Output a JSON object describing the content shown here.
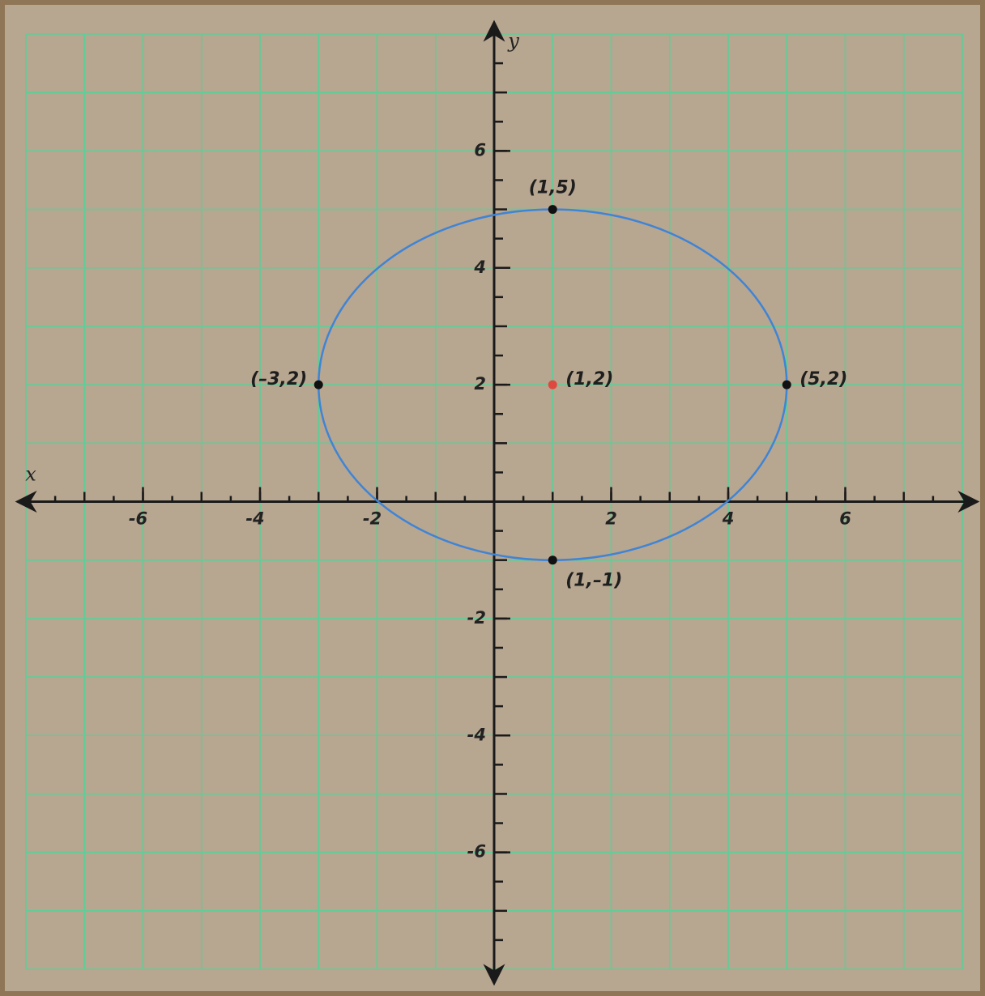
{
  "chart_data": {
    "type": "ellipse",
    "x_label": "x",
    "y_label": "y",
    "xlim": [
      -8,
      8
    ],
    "ylim": [
      -8,
      8
    ],
    "xticks": [
      -6,
      -4,
      -2,
      2,
      4,
      6
    ],
    "yticks": [
      -6,
      -4,
      -2,
      2,
      4,
      6
    ],
    "xgrid": [
      -8,
      -7,
      -6,
      -5,
      -4,
      -3,
      -2,
      -1,
      0,
      1,
      2,
      3,
      4,
      5,
      6,
      7,
      8
    ],
    "ygrid": [
      -8,
      -7,
      -6,
      -5,
      -4,
      -3,
      -2,
      -1,
      0,
      1,
      2,
      3,
      4,
      5,
      6,
      7,
      8
    ],
    "minor_ticks": [
      -7.5,
      -7,
      -6.5,
      -6,
      -5.5,
      -5,
      -4.5,
      -4,
      -3.5,
      -3,
      -2.5,
      -2,
      -1.5,
      -1,
      -0.5,
      0.5,
      1,
      1.5,
      2,
      2.5,
      3,
      3.5,
      4,
      4.5,
      5,
      5.5,
      6,
      6.5,
      7,
      7.5
    ],
    "grid_color": "#5ccf97",
    "ellipse": {
      "cx": 1,
      "cy": 2,
      "rx": 4,
      "ry": 3,
      "color": "#3f84d6"
    },
    "points": [
      {
        "label": "(1,5)",
        "x": 1,
        "y": 5,
        "color": "#111111",
        "position": "top"
      },
      {
        "label": "(–3,2)",
        "x": -3,
        "y": 2,
        "color": "#111111",
        "position": "left"
      },
      {
        "label": "(1,2)",
        "x": 1,
        "y": 2,
        "color": "#e0473f",
        "position": "right"
      },
      {
        "label": "(5,2)",
        "x": 5,
        "y": 2,
        "color": "#111111",
        "position": "right"
      },
      {
        "label": "(1,–1)",
        "x": 1,
        "y": -1,
        "color": "#111111",
        "position": "bottom-right"
      }
    ]
  }
}
